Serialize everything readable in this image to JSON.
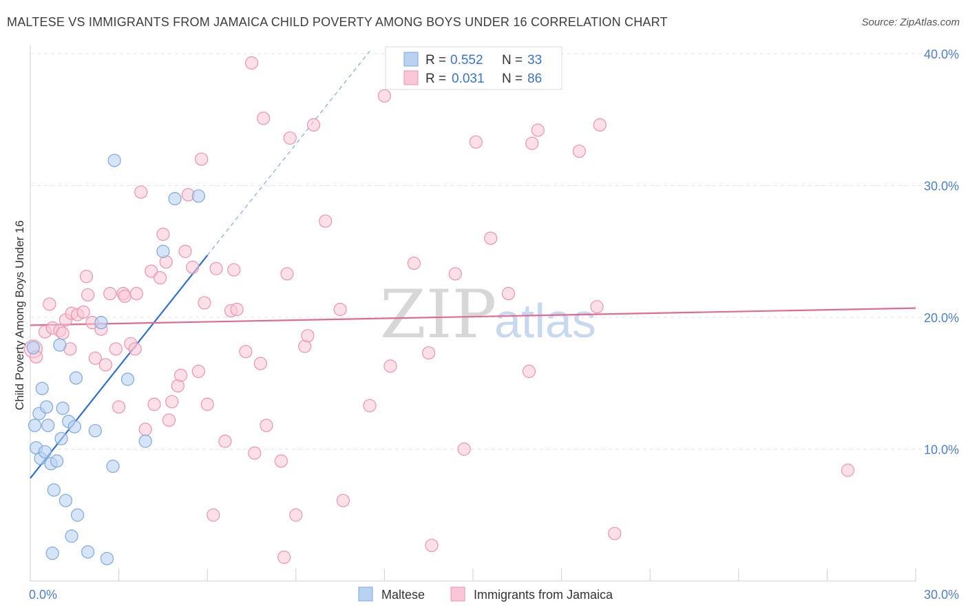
{
  "title": "MALTESE VS IMMIGRANTS FROM JAMAICA CHILD POVERTY AMONG BOYS UNDER 16 CORRELATION CHART",
  "source": "Source: ZipAtlas.com",
  "watermark": {
    "zip": "ZIP",
    "atlas": "atlas"
  },
  "colors": {
    "maltese_fill": "#b9d2f2",
    "maltese_stroke": "#7fa7de",
    "maltese_line": "#2e6fce",
    "jamaica_fill": "#f9c6d6",
    "jamaica_stroke": "#ec93b0",
    "jamaica_line": "#e06a94",
    "tick_text": "#4f7fc8",
    "grid": "#e3e3e3"
  },
  "legend": {
    "rows": [
      {
        "r_label": "R =",
        "r_value": "0.552",
        "n_label": "N =",
        "n_value": "33"
      },
      {
        "r_label": "R =",
        "r_value": "0.031",
        "n_label": "N =",
        "n_value": "86"
      }
    ]
  },
  "chart_data": {
    "type": "scatter",
    "title": "MALTESE VS IMMIGRANTS FROM JAMAICA CHILD POVERTY AMONG BOYS UNDER 16 CORRELATION CHART",
    "xlabel": "",
    "ylabel": "Child Poverty Among Boys Under 16",
    "xlim": [
      0,
      30
    ],
    "ylim": [
      0,
      40
    ],
    "x_ticks": [
      "0.0%",
      "30.0%"
    ],
    "y_ticks": [
      {
        "value": 10,
        "label": "10.0%"
      },
      {
        "value": 20,
        "label": "20.0%"
      },
      {
        "value": 30,
        "label": "30.0%"
      },
      {
        "value": 40,
        "label": "40.0%"
      }
    ],
    "grid": true,
    "legend_position": "top-center",
    "series": [
      {
        "name": "Maltese",
        "r": 0.552,
        "n": 33,
        "trend": {
          "x0": 0,
          "y0": 7.8,
          "x1": 6.0,
          "y1": 24.7,
          "dash_to_x": 11.5
        },
        "points": [
          [
            0.1,
            17.7
          ],
          [
            0.15,
            11.8
          ],
          [
            0.2,
            10.1
          ],
          [
            0.3,
            12.7
          ],
          [
            0.35,
            9.3
          ],
          [
            0.4,
            14.6
          ],
          [
            0.5,
            9.8
          ],
          [
            0.55,
            13.2
          ],
          [
            0.6,
            11.8
          ],
          [
            0.7,
            8.9
          ],
          [
            0.8,
            6.9
          ],
          [
            0.9,
            9.1
          ],
          [
            1.05,
            10.8
          ],
          [
            1.1,
            13.1
          ],
          [
            1.3,
            12.1
          ],
          [
            1.5,
            11.7
          ],
          [
            1.55,
            15.4
          ],
          [
            1.6,
            5.0
          ],
          [
            1.4,
            3.4
          ],
          [
            1.2,
            6.1
          ],
          [
            0.75,
            2.1
          ],
          [
            1.95,
            2.2
          ],
          [
            2.2,
            11.4
          ],
          [
            2.4,
            19.6
          ],
          [
            2.6,
            1.7
          ],
          [
            2.8,
            8.7
          ],
          [
            2.85,
            31.9
          ],
          [
            3.3,
            15.3
          ],
          [
            3.9,
            10.6
          ],
          [
            4.5,
            25.0
          ],
          [
            4.9,
            29.0
          ],
          [
            5.7,
            29.2
          ],
          [
            1.0,
            17.9
          ]
        ]
      },
      {
        "name": "Immigrants from Jamaica",
        "r": 0.031,
        "n": 86,
        "trend": {
          "x0": 0,
          "y0": 19.4,
          "x1": 30,
          "y1": 20.7
        },
        "points": [
          [
            0.1,
            17.6
          ],
          [
            0.2,
            17.0
          ],
          [
            0.5,
            18.9
          ],
          [
            0.65,
            21.0
          ],
          [
            0.75,
            19.2
          ],
          [
            1.0,
            19.0
          ],
          [
            1.1,
            18.8
          ],
          [
            1.2,
            19.8
          ],
          [
            1.35,
            17.6
          ],
          [
            1.4,
            20.3
          ],
          [
            1.6,
            20.2
          ],
          [
            1.8,
            20.4
          ],
          [
            1.9,
            23.1
          ],
          [
            1.95,
            21.7
          ],
          [
            2.1,
            19.6
          ],
          [
            2.2,
            16.9
          ],
          [
            2.4,
            19.1
          ],
          [
            2.55,
            16.4
          ],
          [
            2.7,
            21.8
          ],
          [
            2.9,
            17.6
          ],
          [
            3.0,
            13.2
          ],
          [
            3.15,
            21.8
          ],
          [
            3.2,
            21.6
          ],
          [
            3.4,
            18.0
          ],
          [
            3.55,
            17.6
          ],
          [
            3.6,
            21.8
          ],
          [
            3.75,
            29.5
          ],
          [
            3.9,
            11.5
          ],
          [
            4.1,
            23.5
          ],
          [
            4.2,
            13.4
          ],
          [
            4.4,
            23.0
          ],
          [
            4.5,
            26.3
          ],
          [
            4.6,
            24.2
          ],
          [
            4.7,
            12.2
          ],
          [
            4.8,
            13.6
          ],
          [
            5.0,
            14.8
          ],
          [
            5.1,
            15.6
          ],
          [
            5.25,
            25.0
          ],
          [
            5.35,
            29.3
          ],
          [
            5.5,
            23.8
          ],
          [
            5.7,
            15.9
          ],
          [
            5.8,
            32.0
          ],
          [
            5.9,
            21.1
          ],
          [
            6.0,
            13.4
          ],
          [
            6.2,
            5.0
          ],
          [
            6.3,
            23.7
          ],
          [
            6.6,
            10.6
          ],
          [
            6.8,
            20.5
          ],
          [
            6.9,
            23.6
          ],
          [
            7.0,
            20.6
          ],
          [
            7.3,
            17.4
          ],
          [
            7.5,
            39.3
          ],
          [
            7.6,
            9.7
          ],
          [
            7.8,
            16.5
          ],
          [
            7.9,
            35.1
          ],
          [
            8.0,
            11.8
          ],
          [
            8.5,
            9.1
          ],
          [
            8.6,
            1.8
          ],
          [
            8.7,
            23.3
          ],
          [
            8.8,
            33.6
          ],
          [
            9.0,
            5.0
          ],
          [
            9.3,
            17.8
          ],
          [
            9.4,
            18.6
          ],
          [
            9.6,
            34.6
          ],
          [
            10.0,
            27.3
          ],
          [
            10.5,
            20.6
          ],
          [
            10.6,
            6.1
          ],
          [
            11.5,
            13.3
          ],
          [
            12.0,
            36.8
          ],
          [
            12.2,
            16.3
          ],
          [
            13.0,
            24.1
          ],
          [
            13.5,
            17.3
          ],
          [
            13.6,
            2.7
          ],
          [
            14.4,
            23.3
          ],
          [
            14.7,
            10.0
          ],
          [
            15.1,
            33.3
          ],
          [
            15.6,
            26.0
          ],
          [
            16.2,
            21.8
          ],
          [
            16.9,
            15.9
          ],
          [
            17.0,
            33.2
          ],
          [
            17.2,
            34.2
          ],
          [
            18.6,
            32.6
          ],
          [
            19.2,
            20.8
          ],
          [
            19.3,
            34.6
          ],
          [
            19.8,
            3.6
          ],
          [
            27.7,
            8.4
          ]
        ]
      }
    ]
  },
  "bottom_legend": {
    "items": [
      "Maltese",
      "Immigrants from Jamaica"
    ]
  }
}
